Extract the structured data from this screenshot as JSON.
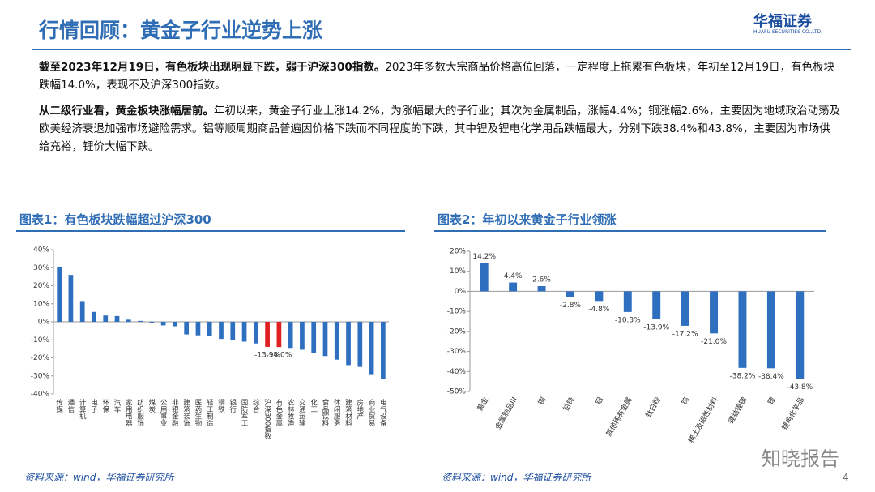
{
  "header": {
    "title": "行情回顾：黄金子行业逆势上涨",
    "logo": "华福证券",
    "logo_sub": "HUAFU SECURITIES CO.,LTD."
  },
  "paragraphs": [
    {
      "bold": "截至2023年12月19日，有色板块出现明显下跌，弱于沪深300指数。",
      "text": "2023年多数大宗商品价格高位回落，一定程度上拖累有色板块，年初至12月19日，有色板块跌幅14.0%，表现不及沪深300指数。"
    },
    {
      "bold": "从二级行业看，黄金板块涨幅居前。",
      "text": "年初以来，黄金子行业上涨14.2%，为涨幅最大的子行业；其次为金属制品，涨幅4.4%；铜涨幅2.6%，主要因为地域政治动荡及欧美经济衰退加强市场避险需求。铝等顺周期商品普遍因价格下跌而不同程度的下跌，其中锂及锂电化学用品跌幅最大，分别下跌38.4%和43.8%，主要因为市场供给充裕，锂价大幅下跌。"
    }
  ],
  "chart_data": [
    {
      "type": "bar",
      "title": "图表1：有色板块跌幅超过沪深300",
      "source": "资料来源：wind，华福证券研究所",
      "categories": [
        "传媒",
        "通信",
        "计算机",
        "电子",
        "环保",
        "汽车",
        "家用电器",
        "纺织服饰",
        "煤炭",
        "公用事业",
        "非银金融",
        "建筑装饰",
        "医药生物",
        "轻工制造",
        "钢铁",
        "银行",
        "国防军工",
        "综合",
        "沪深300指数",
        "有色金属",
        "农林牧渔",
        "交通运输",
        "化工",
        "食品饮料",
        "休闲服务",
        "建筑材料",
        "房地产",
        "商业贸易",
        "电气设备"
      ],
      "values": [
        30.5,
        26,
        11.5,
        5.5,
        3.5,
        3.2,
        1.2,
        0.5,
        -0.5,
        -2,
        -2.5,
        -7,
        -7.5,
        -8,
        -9.5,
        -10,
        -11,
        -12,
        -13.9,
        -14.0,
        -14.5,
        -15.5,
        -17.5,
        -19,
        -21,
        -24,
        -25,
        -29.5,
        -31.5
      ],
      "value_labels": [
        null,
        null,
        null,
        null,
        null,
        null,
        null,
        null,
        null,
        null,
        null,
        null,
        null,
        null,
        null,
        null,
        null,
        null,
        "-13.9%",
        "-14.0%",
        null,
        null,
        null,
        null,
        null,
        null,
        null,
        null,
        null
      ],
      "colors": [
        "#2e6fc0",
        "#2e6fc0",
        "#2e6fc0",
        "#2e6fc0",
        "#2e6fc0",
        "#2e6fc0",
        "#2e6fc0",
        "#2e6fc0",
        "#2e6fc0",
        "#2e6fc0",
        "#2e6fc0",
        "#2e6fc0",
        "#2e6fc0",
        "#2e6fc0",
        "#2e6fc0",
        "#2e6fc0",
        "#2e6fc0",
        "#2e6fc0",
        "#e02020",
        "#e02020",
        "#2e6fc0",
        "#2e6fc0",
        "#2e6fc0",
        "#2e6fc0",
        "#2e6fc0",
        "#2e6fc0",
        "#2e6fc0",
        "#2e6fc0",
        "#2e6fc0"
      ],
      "ylim": [
        -40,
        40
      ],
      "yticks": [
        {
          "value": -40,
          "label": "-40%"
        },
        {
          "value": -30,
          "label": "-30%"
        },
        {
          "value": -20,
          "label": "-20%"
        },
        {
          "value": -10,
          "label": "-10%"
        },
        {
          "value": 0,
          "label": "0%"
        },
        {
          "value": 10,
          "label": "10%"
        },
        {
          "value": 20,
          "label": "20%"
        },
        {
          "value": 30,
          "label": "30%"
        },
        {
          "value": 40,
          "label": "40%"
        }
      ],
      "grid": false
    },
    {
      "type": "bar",
      "title": "图表2：年初以来黄金子行业领涨",
      "source": "资料来源：wind，华福证券研究所",
      "categories": [
        "黄金",
        "金属制品III",
        "铜",
        "铅锌",
        "铝",
        "其他稀有金属",
        "钛白粉",
        "钨",
        "稀土及磁性材料",
        "锂钴镍锑",
        "锂",
        "锂电化学品"
      ],
      "values": [
        14.2,
        4.4,
        2.6,
        -2.8,
        -4.8,
        -10.3,
        -13.9,
        -17.2,
        -21.0,
        -38.2,
        -38.4,
        -43.8
      ],
      "value_labels": [
        "14.2%",
        "4.4%",
        "2.6%",
        "-2.8%",
        "-4.8%",
        "-10.3%",
        "-13.9%",
        "-17.2%",
        "-21.0%",
        "-38.2%",
        "-38.4%",
        "-43.8%"
      ],
      "colors": [
        "#2e6fc0",
        "#2e6fc0",
        "#2e6fc0",
        "#2e6fc0",
        "#2e6fc0",
        "#2e6fc0",
        "#2e6fc0",
        "#2e6fc0",
        "#2e6fc0",
        "#2e6fc0",
        "#2e6fc0",
        "#2e6fc0"
      ],
      "ylim": [
        -50,
        20
      ],
      "yticks": [
        {
          "value": -50,
          "label": "-50%"
        },
        {
          "value": -40,
          "label": "-40%"
        },
        {
          "value": -30,
          "label": "-30%"
        },
        {
          "value": -20,
          "label": "-20%"
        },
        {
          "value": -10,
          "label": "-10%"
        },
        {
          "value": 0,
          "label": "0%"
        },
        {
          "value": 10,
          "label": "10%"
        },
        {
          "value": 20,
          "label": "20%"
        }
      ],
      "grid": false
    }
  ],
  "page_number": "4",
  "watermark": "知晓报告"
}
